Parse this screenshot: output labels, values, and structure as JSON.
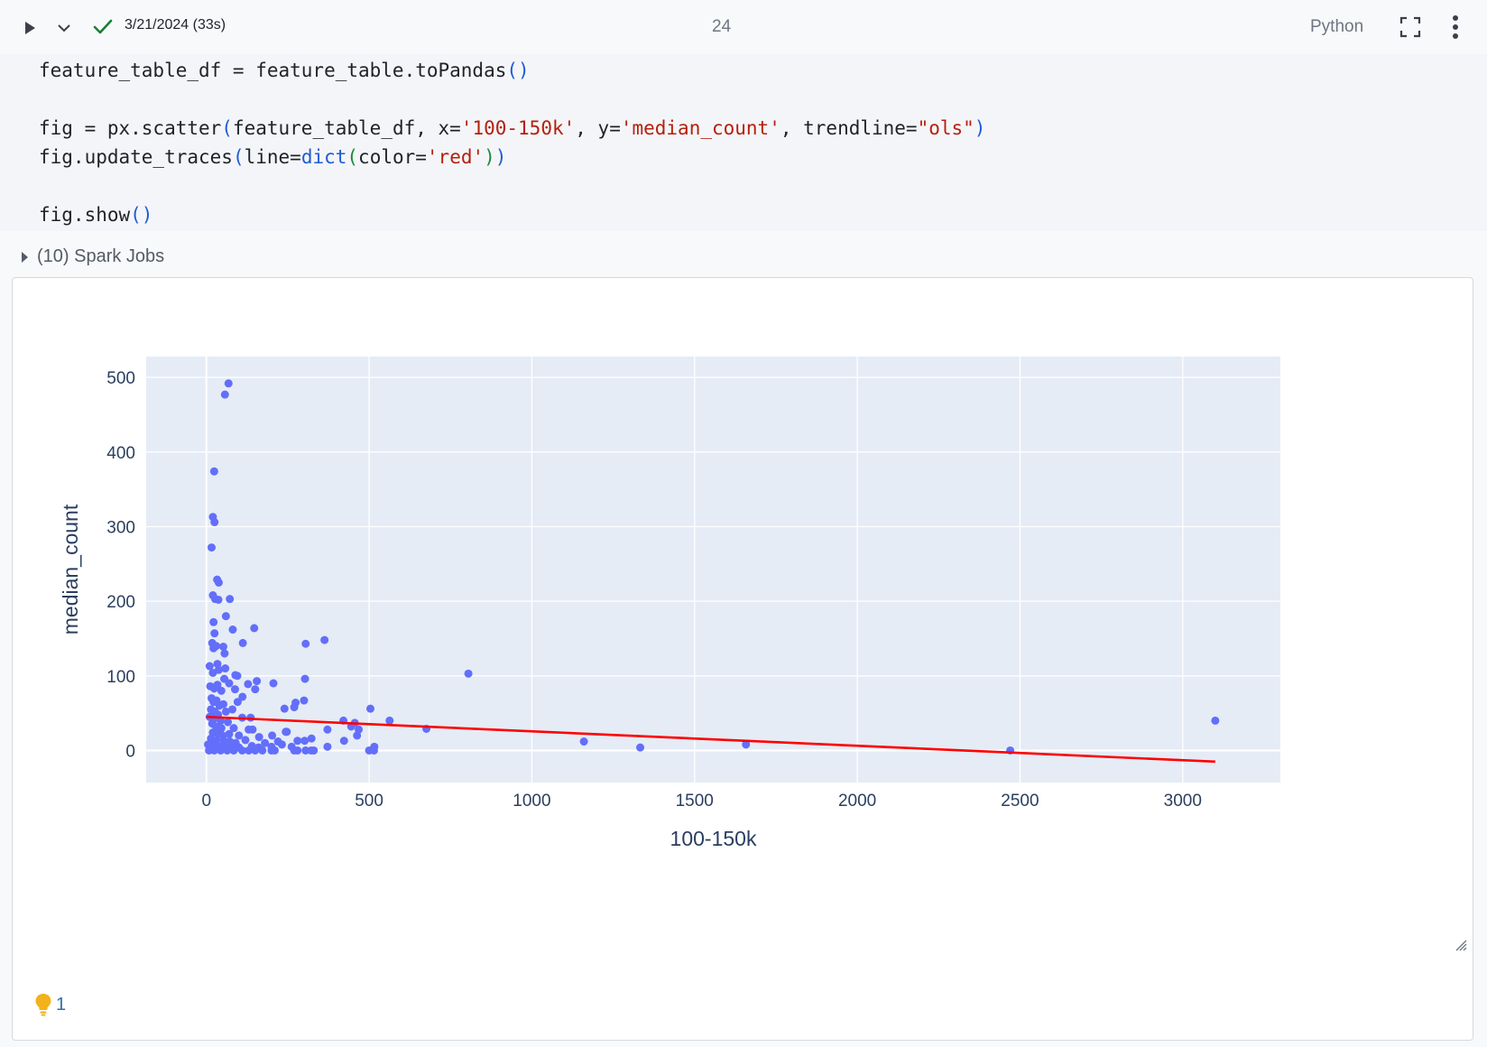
{
  "toolbar": {
    "run_icon": "play-icon",
    "chevron_icon": "chevron-down-icon",
    "status_icon": "check-icon",
    "status_text": "3/21/2024 (33s)",
    "cell_number": "24",
    "language": "Python",
    "expand_icon": "expand-icon",
    "more_icon": "more-vertical-icon"
  },
  "code": {
    "line1": {
      "a": "feature_table_df = feature_table.toPandas",
      "b": "()"
    },
    "line3": {
      "a": "fig = px.scatter",
      "b": "(",
      "c": "feature_table_df, x=",
      "d": "'100-150k'",
      "e": ", y=",
      "f": "'median_count'",
      "g": ", trendline=",
      "h": "\"ols\"",
      "i": ")"
    },
    "line4": {
      "a": "fig.update_traces",
      "b": "(",
      "c": "line=",
      "d": "dict",
      "e": "(",
      "f": "color=",
      "g": "'red'",
      "h": ")",
      "i": ")"
    },
    "line6": {
      "a": "fig.show",
      "b": "()"
    }
  },
  "spark_jobs": {
    "label": "(10) Spark Jobs"
  },
  "hint": {
    "icon": "lightbulb-icon",
    "count": "1"
  },
  "colors": {
    "marker": "#636efa",
    "trendline": "#ff0000",
    "plot_bg": "#e5ecf6",
    "grid": "#ffffff",
    "check": "#1a7f37"
  },
  "chart_data": {
    "type": "scatter",
    "xlabel": "100-150k",
    "ylabel": "median_count",
    "xlim": [
      -185,
      3300
    ],
    "ylim": [
      -43,
      528
    ],
    "xticks": [
      0,
      500,
      1000,
      1500,
      2000,
      2500,
      3000
    ],
    "xtick_labels": [
      "0",
      "500",
      "1000",
      "1500",
      "2000",
      "2500",
      "3000"
    ],
    "yticks": [
      0,
      100,
      200,
      300,
      400,
      500
    ],
    "ytick_labels": [
      "0",
      "100",
      "200",
      "300",
      "400",
      "500"
    ],
    "grid": true,
    "legend": "none",
    "points": [
      [
        68,
        492
      ],
      [
        57,
        477
      ],
      [
        24,
        374
      ],
      [
        20,
        313
      ],
      [
        25,
        306
      ],
      [
        16,
        272
      ],
      [
        33,
        229
      ],
      [
        38,
        225
      ],
      [
        20,
        208
      ],
      [
        27,
        203
      ],
      [
        37,
        202
      ],
      [
        72,
        203
      ],
      [
        60,
        180
      ],
      [
        22,
        172
      ],
      [
        81,
        162
      ],
      [
        147,
        164
      ],
      [
        25,
        157
      ],
      [
        18,
        144
      ],
      [
        112,
        144
      ],
      [
        22,
        137
      ],
      [
        30,
        140
      ],
      [
        52,
        139
      ],
      [
        56,
        130
      ],
      [
        305,
        143
      ],
      [
        363,
        148
      ],
      [
        10,
        113
      ],
      [
        20,
        104
      ],
      [
        34,
        116
      ],
      [
        38,
        108
      ],
      [
        58,
        110
      ],
      [
        89,
        101
      ],
      [
        95,
        100
      ],
      [
        34,
        88
      ],
      [
        55,
        96
      ],
      [
        303,
        96
      ],
      [
        805,
        103
      ],
      [
        12,
        86
      ],
      [
        24,
        83
      ],
      [
        46,
        80
      ],
      [
        70,
        90
      ],
      [
        88,
        82
      ],
      [
        155,
        93
      ],
      [
        128,
        89
      ],
      [
        206,
        90
      ],
      [
        16,
        70
      ],
      [
        22,
        65
      ],
      [
        31,
        67
      ],
      [
        40,
        60
      ],
      [
        52,
        62
      ],
      [
        96,
        65
      ],
      [
        111,
        72
      ],
      [
        150,
        82
      ],
      [
        14,
        55
      ],
      [
        26,
        52
      ],
      [
        36,
        48
      ],
      [
        60,
        52
      ],
      [
        80,
        55
      ],
      [
        240,
        56
      ],
      [
        274,
        64
      ],
      [
        270,
        58
      ],
      [
        300,
        67
      ],
      [
        504,
        56
      ],
      [
        10,
        45
      ],
      [
        22,
        42
      ],
      [
        44,
        40
      ],
      [
        66,
        38
      ],
      [
        110,
        44
      ],
      [
        136,
        44
      ],
      [
        421,
        40
      ],
      [
        445,
        32
      ],
      [
        456,
        37
      ],
      [
        468,
        28
      ],
      [
        563,
        40
      ],
      [
        676,
        29
      ],
      [
        18,
        36
      ],
      [
        30,
        32
      ],
      [
        46,
        30
      ],
      [
        84,
        30
      ],
      [
        130,
        28
      ],
      [
        142,
        28
      ],
      [
        247,
        25
      ],
      [
        372,
        28
      ],
      [
        20,
        24
      ],
      [
        36,
        22
      ],
      [
        50,
        20
      ],
      [
        70,
        22
      ],
      [
        100,
        20
      ],
      [
        162,
        18
      ],
      [
        202,
        20
      ],
      [
        244,
        25
      ],
      [
        463,
        20
      ],
      [
        14,
        16
      ],
      [
        30,
        13
      ],
      [
        52,
        14
      ],
      [
        72,
        12
      ],
      [
        90,
        10
      ],
      [
        120,
        14
      ],
      [
        180,
        10
      ],
      [
        220,
        12
      ],
      [
        280,
        13
      ],
      [
        302,
        13
      ],
      [
        323,
        16
      ],
      [
        423,
        13
      ],
      [
        1160,
        12
      ],
      [
        5,
        8
      ],
      [
        20,
        6
      ],
      [
        40,
        5
      ],
      [
        60,
        8
      ],
      [
        80,
        5
      ],
      [
        100,
        4
      ],
      [
        140,
        6
      ],
      [
        160,
        4
      ],
      [
        200,
        5
      ],
      [
        232,
        8
      ],
      [
        262,
        5
      ],
      [
        372,
        5
      ],
      [
        516,
        5
      ],
      [
        1333,
        4
      ],
      [
        1658,
        8
      ],
      [
        8,
        0
      ],
      [
        24,
        0
      ],
      [
        44,
        0
      ],
      [
        64,
        0
      ],
      [
        84,
        0
      ],
      [
        110,
        0
      ],
      [
        130,
        0
      ],
      [
        150,
        0
      ],
      [
        172,
        0
      ],
      [
        200,
        0
      ],
      [
        210,
        0
      ],
      [
        270,
        0
      ],
      [
        280,
        0
      ],
      [
        305,
        0
      ],
      [
        322,
        0
      ],
      [
        330,
        0
      ],
      [
        500,
        0
      ],
      [
        515,
        0
      ],
      [
        2470,
        0
      ],
      [
        3100,
        40
      ]
    ],
    "trendline": {
      "x": [
        0,
        3100
      ],
      "y": [
        45,
        -15
      ]
    }
  }
}
